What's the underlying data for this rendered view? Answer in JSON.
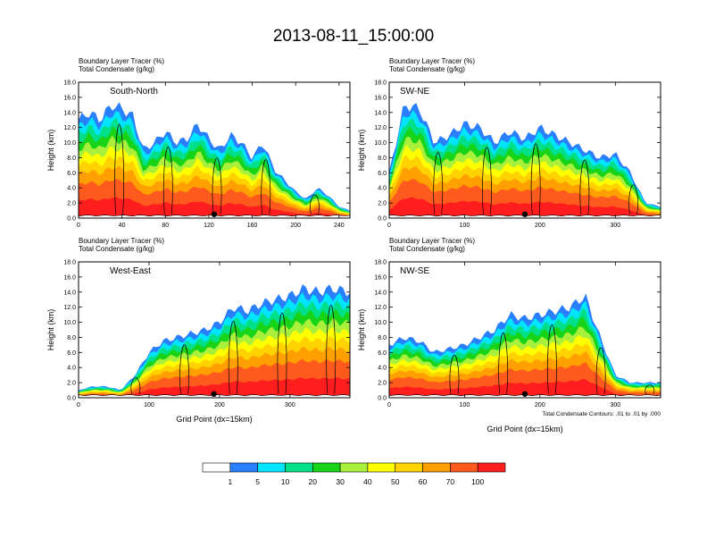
{
  "title": "2013-08-11_15:00:00",
  "colors": {
    "levels": [
      "#ffffff",
      "#2a7fff",
      "#00e5ff",
      "#00e08a",
      "#18d418",
      "#a8f03c",
      "#ffff00",
      "#ffd200",
      "#ffa000",
      "#ff5a1e",
      "#ff1e1e"
    ],
    "terrain_marker": "#000000"
  },
  "colorbar": {
    "labels": [
      "1",
      "5",
      "10",
      "20",
      "30",
      "40",
      "50",
      "60",
      "70",
      "100"
    ]
  },
  "footnote": "Total Condensate Contours: .01 to .01 by .000",
  "chart_data": [
    {
      "type": "heatmap",
      "title": "Boundary Layer Tracer   (%)",
      "subtitle": "Total Condensate   (g/kg)",
      "annotation": "South-North",
      "xlabel": "",
      "ylabel": "Height (km)",
      "xlim": [
        0,
        250
      ],
      "ylim": [
        0,
        18
      ],
      "xticks": [
        0,
        40,
        80,
        120,
        160,
        200,
        240
      ],
      "yticks": [
        "0.0",
        "2.0",
        "4.0",
        "6.0",
        "8.0",
        "10.0",
        "12.0",
        "14.0",
        "16.0",
        "18.0"
      ],
      "terrain_point_x": 125,
      "profile": {
        "x": [
          0,
          10,
          20,
          30,
          40,
          50,
          60,
          70,
          80,
          90,
          100,
          110,
          120,
          130,
          140,
          150,
          160,
          170,
          180,
          190,
          200,
          210,
          220,
          230,
          240,
          250
        ],
        "top": [
          13.0,
          14.0,
          13.0,
          15.0,
          14.5,
          13.5,
          9.0,
          10.0,
          11.5,
          10.0,
          10.5,
          12.5,
          10.5,
          9.0,
          11.0,
          10.0,
          8.0,
          10.0,
          6.5,
          5.0,
          3.5,
          2.5,
          4.0,
          3.0,
          1.5,
          1.0
        ]
      }
    },
    {
      "type": "heatmap",
      "title": "Boundary Layer Tracer   (%)",
      "subtitle": "Total Condensate   (g/kg)",
      "annotation": "SW-NE",
      "xlabel": "",
      "ylabel": "Height (km)",
      "xlim": [
        0,
        360
      ],
      "ylim": [
        0,
        18
      ],
      "xticks": [
        0,
        100,
        200,
        300
      ],
      "yticks": [
        "0.0",
        "2.0",
        "4.0",
        "6.0",
        "8.0",
        "10.0",
        "12.0",
        "14.0",
        "16.0",
        "18.0"
      ],
      "terrain_point_x": 180,
      "profile": {
        "x": [
          0,
          20,
          40,
          60,
          80,
          100,
          120,
          140,
          160,
          180,
          200,
          220,
          240,
          260,
          280,
          300,
          320,
          340,
          360
        ],
        "top": [
          6.0,
          15.0,
          14.5,
          10.0,
          11.0,
          12.5,
          12.0,
          10.0,
          11.5,
          10.5,
          12.0,
          11.0,
          10.0,
          9.0,
          8.0,
          8.5,
          6.0,
          2.0,
          1.5
        ]
      }
    },
    {
      "type": "heatmap",
      "title": "Boundary Layer Tracer   (%)",
      "subtitle": "Total Condensate   (g/kg)",
      "annotation": "West-East",
      "xlabel": "Grid Point (dx=15km)",
      "ylabel": "Height (km)",
      "xlim": [
        0,
        385
      ],
      "ylim": [
        0,
        18
      ],
      "xticks": [
        0,
        100,
        200,
        300
      ],
      "yticks": [
        "0.0",
        "2.0",
        "4.0",
        "6.0",
        "8.0",
        "10.0",
        "12.0",
        "14.0",
        "16.0",
        "18.0"
      ],
      "terrain_point_x": 192,
      "profile": {
        "x": [
          0,
          20,
          40,
          60,
          80,
          100,
          120,
          140,
          160,
          180,
          200,
          220,
          240,
          260,
          280,
          300,
          320,
          340,
          360,
          385
        ],
        "top": [
          1.0,
          1.5,
          1.5,
          1.0,
          3.0,
          6.0,
          7.5,
          8.0,
          8.5,
          9.0,
          10.0,
          12.0,
          11.5,
          12.5,
          13.0,
          13.5,
          14.5,
          14.0,
          14.5,
          14.0
        ]
      }
    },
    {
      "type": "heatmap",
      "title": "Boundary Layer Tracer   (%)",
      "subtitle": "Total Condensate   (g/kg)",
      "annotation": "NW-SE",
      "xlabel": "Grid Point (dx=15km)",
      "ylabel": "Height (km)",
      "xlim": [
        0,
        360
      ],
      "ylim": [
        0,
        18
      ],
      "xticks": [
        0,
        100,
        200,
        300
      ],
      "yticks": [
        "0.0",
        "2.0",
        "4.0",
        "6.0",
        "8.0",
        "10.0",
        "12.0",
        "14.0",
        "16.0",
        "18.0"
      ],
      "terrain_point_x": 180,
      "profile": {
        "x": [
          0,
          20,
          40,
          60,
          80,
          100,
          120,
          140,
          160,
          180,
          200,
          220,
          240,
          260,
          280,
          300,
          320,
          340,
          360
        ],
        "top": [
          7.0,
          8.0,
          7.5,
          6.0,
          6.5,
          7.0,
          8.0,
          9.0,
          11.0,
          10.5,
          11.0,
          11.5,
          12.0,
          13.5,
          8.0,
          3.0,
          2.0,
          2.0,
          2.0
        ]
      }
    }
  ]
}
